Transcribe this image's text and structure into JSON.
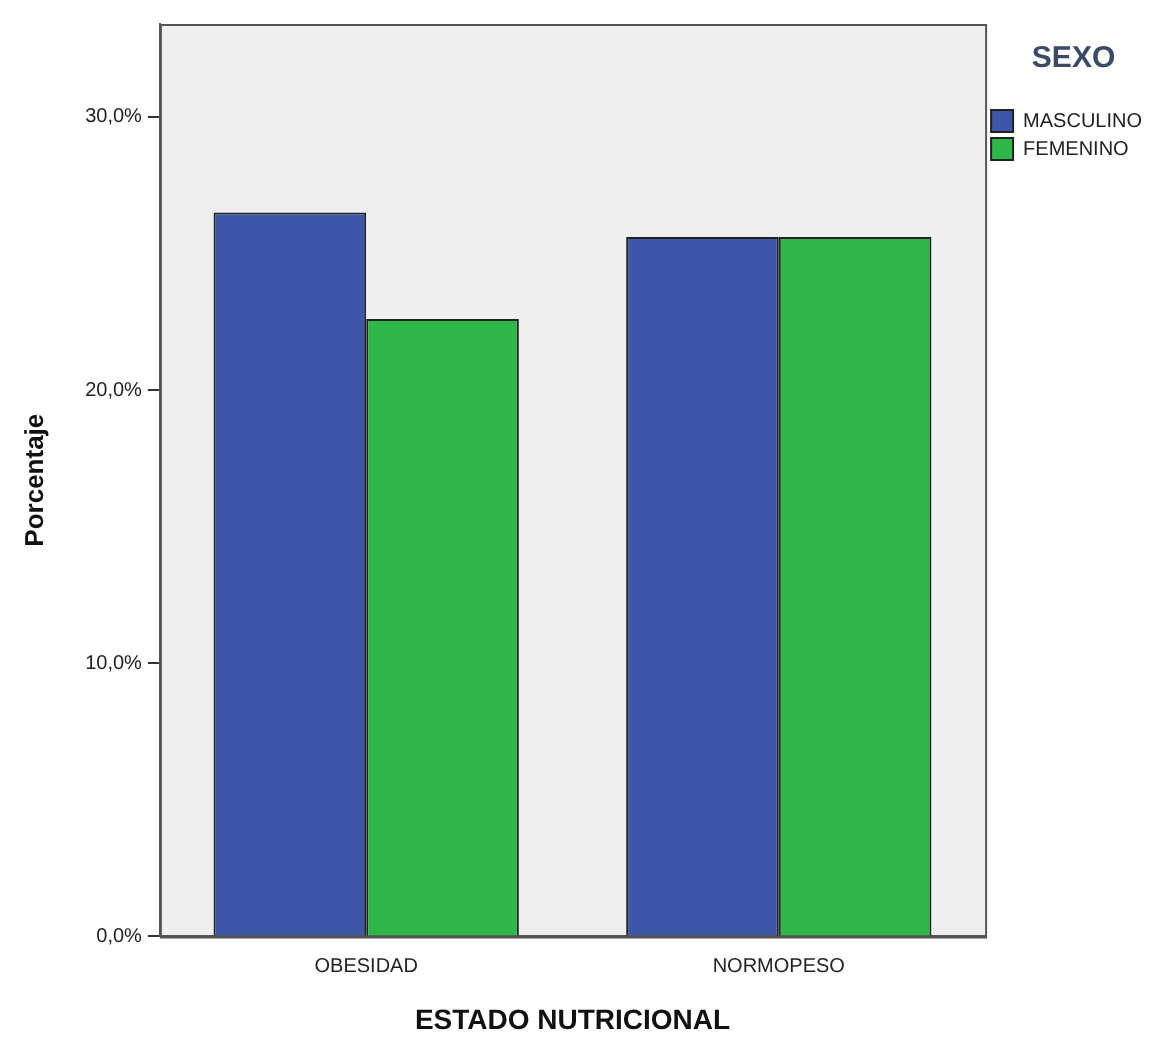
{
  "chart_data": {
    "type": "bar",
    "xlabel": "ESTADO NUTRICIONAL",
    "ylabel": "Porcentaje",
    "legend_title": "SEXO",
    "legend": "top right",
    "categories": [
      "OBESIDAD",
      "NORMOPESO"
    ],
    "series": [
      {
        "name": "MASCULINO",
        "color": "#3e56a8",
        "values": [
          26.5,
          25.6
        ]
      },
      {
        "name": "FEMENINO",
        "color": "#2eb84a",
        "values": [
          22.6,
          25.6
        ]
      }
    ],
    "ylim": [
      0,
      33.4
    ],
    "yticks": [
      {
        "value": 0,
        "label": "0,0%"
      },
      {
        "value": 10,
        "label": "10,0%"
      },
      {
        "value": 20,
        "label": "20,0%"
      },
      {
        "value": 30,
        "label": "30,0%"
      }
    ],
    "grid": false
  }
}
